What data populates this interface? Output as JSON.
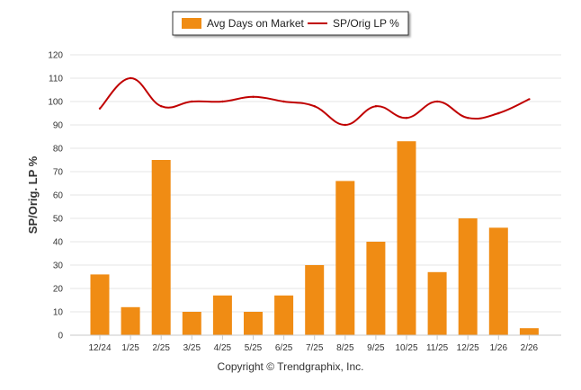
{
  "chart_data": {
    "type": "bar",
    "categories": [
      "12/24",
      "1/25",
      "2/25",
      "3/25",
      "4/25",
      "5/25",
      "6/25",
      "7/25",
      "8/25",
      "9/25",
      "10/25",
      "11/25",
      "12/25",
      "1/26",
      "2/26"
    ],
    "series": [
      {
        "name": "Avg Days on Market",
        "type": "bar",
        "color": "#f08c14",
        "values": [
          26,
          12,
          75,
          10,
          17,
          10,
          17,
          30,
          66,
          40,
          83,
          27,
          50,
          46,
          3
        ]
      },
      {
        "name": "SP/Orig LP %",
        "type": "line",
        "color": "#c00000",
        "values": [
          97,
          110,
          98,
          100,
          100,
          102,
          100,
          98,
          90,
          98,
          93,
          100,
          93,
          95,
          101
        ]
      }
    ],
    "ylabel": "SP/Orig. LP %",
    "ylim": [
      0,
      120
    ],
    "yticks": [
      0,
      10,
      20,
      30,
      40,
      50,
      60,
      70,
      80,
      90,
      100,
      110,
      120
    ],
    "grid": true,
    "legend_position": "top-center"
  },
  "footer": "Copyright © Trendgraphix, Inc."
}
